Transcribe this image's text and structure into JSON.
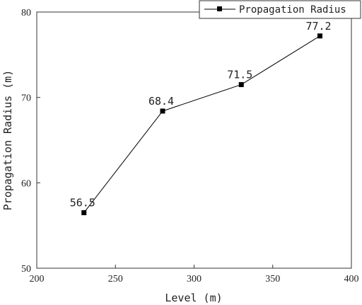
{
  "chart_data": {
    "type": "line",
    "xlabel": "Level (m)",
    "ylabel": "Propagation Radius (m)",
    "xlim": [
      200,
      400
    ],
    "ylim": [
      50,
      80
    ],
    "xticks": [
      200,
      250,
      300,
      350,
      400
    ],
    "yticks": [
      50,
      60,
      70,
      80
    ],
    "grid": false,
    "legend_position": "top-right",
    "series": [
      {
        "name": "Propagation Radius",
        "color": "#000000",
        "marker": "square",
        "x": [
          230,
          280,
          330,
          380
        ],
        "y": [
          56.5,
          68.4,
          71.5,
          77.2
        ],
        "labels": [
          "56.5",
          "68.4",
          "71.5",
          "77.2"
        ]
      }
    ]
  }
}
